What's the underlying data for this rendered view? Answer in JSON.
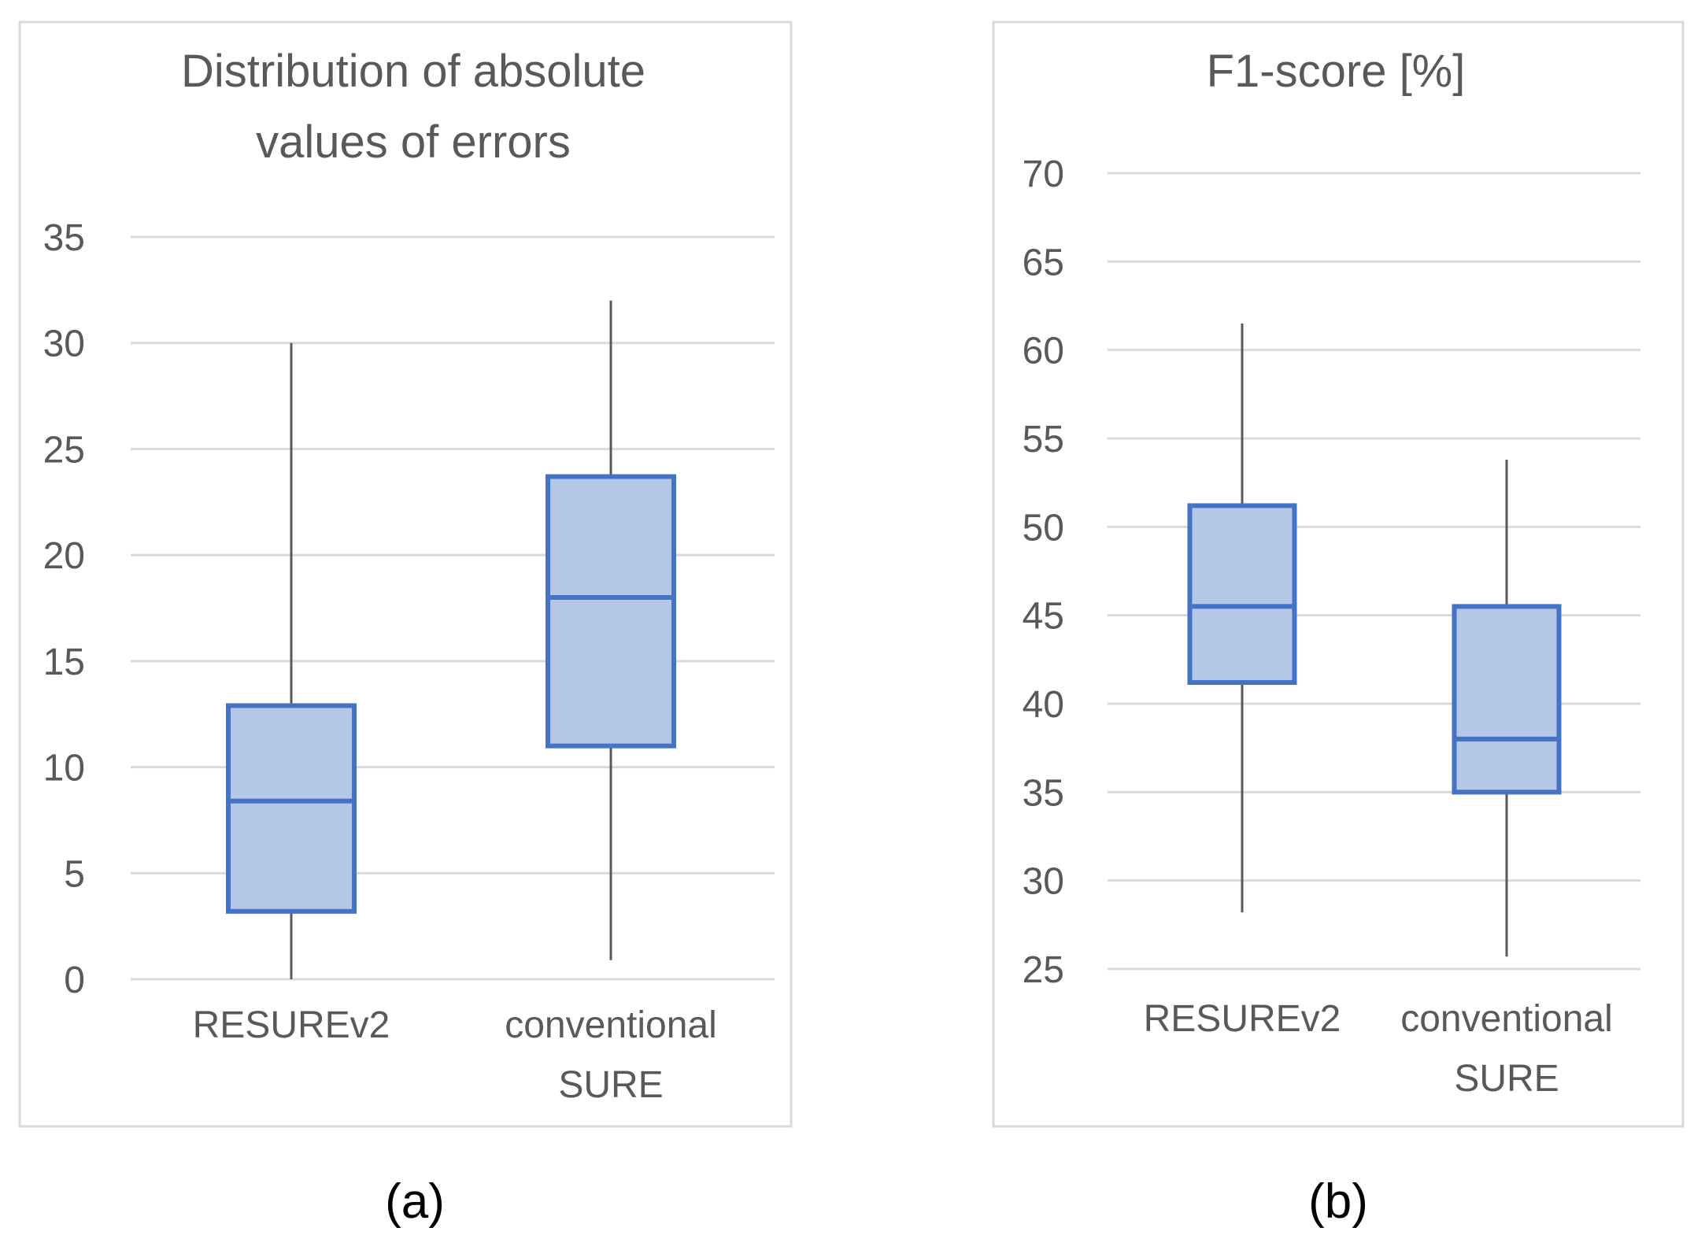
{
  "chart_data": [
    {
      "type": "boxplot",
      "caption": "(a)",
      "title": [
        "Distribution of absolute",
        "values of errors"
      ],
      "xlabel": "",
      "ylabel": "",
      "ylim": [
        0,
        35
      ],
      "yticks": [
        0,
        5,
        10,
        15,
        20,
        25,
        30,
        35
      ],
      "grid": true,
      "categories": [
        [
          "RESUREv2"
        ],
        [
          "conventional",
          "SURE"
        ]
      ],
      "boxes": [
        {
          "min": 0,
          "q1": 3.2,
          "median": 8.4,
          "q3": 12.9,
          "max": 30.0
        },
        {
          "min": 0.9,
          "q1": 11.0,
          "median": 18.0,
          "q3": 23.7,
          "max": 32.0
        }
      ]
    },
    {
      "type": "boxplot",
      "caption": "(b)",
      "title": [
        "F1-score [%]"
      ],
      "xlabel": "",
      "ylabel": "",
      "ylim": [
        25,
        70
      ],
      "yticks": [
        25,
        30,
        35,
        40,
        45,
        50,
        55,
        60,
        65,
        70
      ],
      "grid": true,
      "categories": [
        [
          "RESUREv2"
        ],
        [
          "conventional",
          "SURE"
        ]
      ],
      "boxes": [
        {
          "min": 28.2,
          "q1": 41.2,
          "median": 45.5,
          "q3": 51.2,
          "max": 61.5
        },
        {
          "min": 25.7,
          "q1": 35.0,
          "median": 38.0,
          "q3": 45.5,
          "max": 53.8
        }
      ]
    }
  ]
}
